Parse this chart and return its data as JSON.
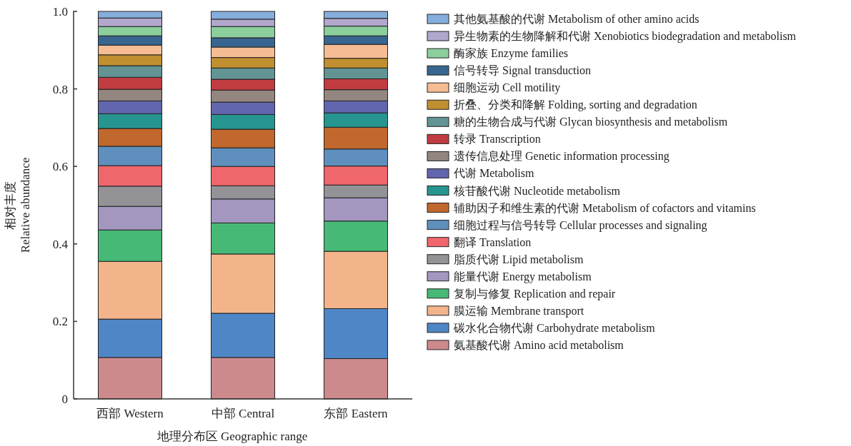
{
  "chart_data": {
    "type": "bar",
    "stacked": true,
    "xlabel": "地理分布区 Geographic range",
    "ylabel": "相对丰度 Relative abundance",
    "categories": [
      "西部 Western",
      "中部 Central",
      "东部 Eastern"
    ],
    "ylim": [
      0,
      1
    ],
    "yticks": [
      0,
      0.2,
      0.4,
      0.6,
      0.8,
      {
        "value": 1,
        "label": "1.0"
      }
    ],
    "legend": "right",
    "series": [
      {
        "name": "氨基酸代谢 Amino acid metabolism",
        "color": "#cd8a8d",
        "values": [
          0.107,
          0.107,
          0.104
        ]
      },
      {
        "name": "碳水化合物代谢 Carbohydrate metabolism",
        "color": "#4f86c6",
        "values": [
          0.099,
          0.114,
          0.129
        ]
      },
      {
        "name": "膜运输 Membrane transport",
        "color": "#f3b48b",
        "values": [
          0.149,
          0.153,
          0.148
        ]
      },
      {
        "name": "复制与修复 Replication and repair",
        "color": "#47b977",
        "values": [
          0.081,
          0.08,
          0.078
        ]
      },
      {
        "name": "能量代谢 Energy metabolism",
        "color": "#a396bf",
        "values": [
          0.061,
          0.062,
          0.06
        ]
      },
      {
        "name": "脂质代谢 Lipid metabolism",
        "color": "#939397",
        "values": [
          0.052,
          0.034,
          0.033
        ]
      },
      {
        "name": "翻译 Translation",
        "color": "#ef676c",
        "values": [
          0.053,
          0.05,
          0.049
        ]
      },
      {
        "name": "细胞过程与信号转导 Cellular processes and signaling",
        "color": "#5f8fbd",
        "values": [
          0.05,
          0.048,
          0.044
        ]
      },
      {
        "name": "辅助因子和维生素的代谢 Metabolism of cofactors and vitamins",
        "color": "#c1682e",
        "values": [
          0.046,
          0.048,
          0.056
        ]
      },
      {
        "name": "核苷酸代谢 Nucleotide metabolism",
        "color": "#27958f",
        "values": [
          0.038,
          0.038,
          0.037
        ]
      },
      {
        "name": "代谢 Metabolism",
        "color": "#6266ae",
        "values": [
          0.033,
          0.032,
          0.031
        ]
      },
      {
        "name": "遗传信息处理 Genetic information processing",
        "color": "#938580",
        "values": [
          0.03,
          0.031,
          0.029
        ]
      },
      {
        "name": "转录 Transcription",
        "color": "#c13c41",
        "values": [
          0.031,
          0.028,
          0.028
        ]
      },
      {
        "name": "糖的生物合成与代谢 Glycan biosynthesis and metabolism",
        "color": "#629494",
        "values": [
          0.03,
          0.029,
          0.028
        ]
      },
      {
        "name": "折叠、分类和降解 Folding, sorting and degradation",
        "color": "#c08f30",
        "values": [
          0.028,
          0.027,
          0.025
        ]
      },
      {
        "name": "细胞运动 Cell motility",
        "color": "#f6bc94",
        "values": [
          0.025,
          0.027,
          0.036
        ]
      },
      {
        "name": "信号转导 Signal transduction",
        "color": "#386690",
        "values": [
          0.024,
          0.024,
          0.022
        ]
      },
      {
        "name": "酶家族 Enzyme families",
        "color": "#8ccf9d",
        "values": [
          0.024,
          0.029,
          0.025
        ]
      },
      {
        "name": "异生物素的生物降解和代谢 Xenobiotics biodegradation and metabolism",
        "color": "#b2a7cc",
        "values": [
          0.022,
          0.019,
          0.02
        ]
      },
      {
        "name": "其他氨基酸的代谢 Metabolism of other amino acids",
        "color": "#86aedc",
        "values": [
          0.017,
          0.02,
          0.018
        ]
      }
    ]
  }
}
